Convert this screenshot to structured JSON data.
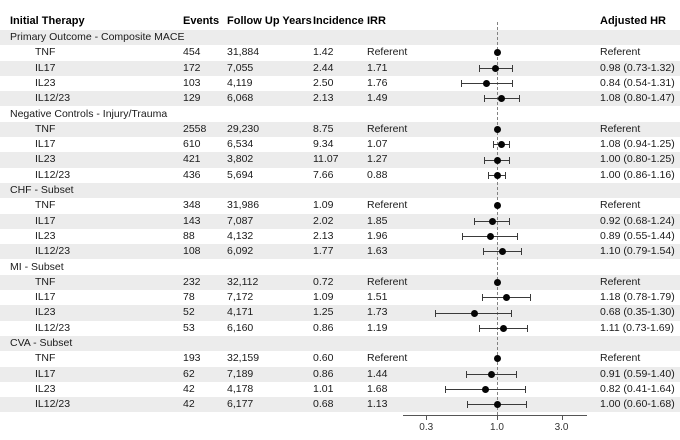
{
  "chart_data": {
    "type": "scatter",
    "variant": "forest-plot-with-table",
    "xscale": "log",
    "x_ticks": [
      0.3,
      1.0,
      3.0
    ],
    "x_tick_labels": [
      "0.3",
      "1.0",
      "3.0"
    ],
    "reference_line": 1.0,
    "stripe_color": "#ececec",
    "point_color": "#050505",
    "columns": {
      "therapy": "Initial Therapy",
      "events": "Events",
      "follow_up": "Follow Up Years",
      "incidence": "Incidence",
      "irr": "IRR",
      "adjusted_hr": "Adjusted HR"
    },
    "sections": [
      {
        "title": "Primary Outcome - Composite MACE",
        "rows": [
          {
            "therapy": "TNF",
            "events": "454",
            "follow_up": "31,884",
            "incidence": "1.42",
            "irr": "Referent",
            "adjusted_hr": "Referent",
            "hr": 1.0,
            "ci": null
          },
          {
            "therapy": "IL17",
            "events": "172",
            "follow_up": "7,055",
            "incidence": "2.44",
            "irr": "1.71",
            "adjusted_hr": "0.98 (0.73-1.32)",
            "hr": 0.98,
            "ci": [
              0.73,
              1.32
            ]
          },
          {
            "therapy": "IL23",
            "events": "103",
            "follow_up": "4,119",
            "incidence": "2.50",
            "irr": "1.76",
            "adjusted_hr": "0.84 (0.54-1.31)",
            "hr": 0.84,
            "ci": [
              0.54,
              1.31
            ]
          },
          {
            "therapy": "IL12/23",
            "events": "129",
            "follow_up": "6,068",
            "incidence": "2.13",
            "irr": "1.49",
            "adjusted_hr": "1.08 (0.80-1.47)",
            "hr": 1.08,
            "ci": [
              0.8,
              1.47
            ]
          }
        ]
      },
      {
        "title": "Negative Controls - Injury/Trauma",
        "rows": [
          {
            "therapy": "TNF",
            "events": "2558",
            "follow_up": "29,230",
            "incidence": "8.75",
            "irr": "Referent",
            "adjusted_hr": "Referent",
            "hr": 1.0,
            "ci": null
          },
          {
            "therapy": "IL17",
            "events": "610",
            "follow_up": "6,534",
            "incidence": "9.34",
            "irr": "1.07",
            "adjusted_hr": "1.08 (0.94-1.25)",
            "hr": 1.08,
            "ci": [
              0.94,
              1.25
            ]
          },
          {
            "therapy": "IL23",
            "events": "421",
            "follow_up": "3,802",
            "incidence": "11.07",
            "irr": "1.27",
            "adjusted_hr": "1.00 (0.80-1.25)",
            "hr": 1.0,
            "ci": [
              0.8,
              1.25
            ]
          },
          {
            "therapy": "IL12/23",
            "events": "436",
            "follow_up": "5,694",
            "incidence": "7.66",
            "irr": "0.88",
            "adjusted_hr": "1.00 (0.86-1.16)",
            "hr": 1.0,
            "ci": [
              0.86,
              1.16
            ]
          }
        ]
      },
      {
        "title": "CHF - Subset",
        "rows": [
          {
            "therapy": "TNF",
            "events": "348",
            "follow_up": "31,986",
            "incidence": "1.09",
            "irr": "Referent",
            "adjusted_hr": "Referent",
            "hr": 1.0,
            "ci": null
          },
          {
            "therapy": "IL17",
            "events": "143",
            "follow_up": "7,087",
            "incidence": "2.02",
            "irr": "1.85",
            "adjusted_hr": "0.92 (0.68-1.24)",
            "hr": 0.92,
            "ci": [
              0.68,
              1.24
            ]
          },
          {
            "therapy": "IL23",
            "events": "88",
            "follow_up": "4,132",
            "incidence": "2.13",
            "irr": "1.96",
            "adjusted_hr": "0.89 (0.55-1.44)",
            "hr": 0.89,
            "ci": [
              0.55,
              1.44
            ]
          },
          {
            "therapy": "IL12/23",
            "events": "108",
            "follow_up": "6,092",
            "incidence": "1.77",
            "irr": "1.63",
            "adjusted_hr": "1.10 (0.79-1.54)",
            "hr": 1.1,
            "ci": [
              0.79,
              1.54
            ]
          }
        ]
      },
      {
        "title": "MI - Subset",
        "rows": [
          {
            "therapy": "TNF",
            "events": "232",
            "follow_up": "32,112",
            "incidence": "0.72",
            "irr": "Referent",
            "adjusted_hr": "Referent",
            "hr": 1.0,
            "ci": null
          },
          {
            "therapy": "IL17",
            "events": "78",
            "follow_up": "7,172",
            "incidence": "1.09",
            "irr": "1.51",
            "adjusted_hr": "1.18 (0.78-1.79)",
            "hr": 1.18,
            "ci": [
              0.78,
              1.79
            ]
          },
          {
            "therapy": "IL23",
            "events": "52",
            "follow_up": "4,171",
            "incidence": "1.25",
            "irr": "1.73",
            "adjusted_hr": "0.68 (0.35-1.30)",
            "hr": 0.68,
            "ci": [
              0.35,
              1.3
            ]
          },
          {
            "therapy": "IL12/23",
            "events": "53",
            "follow_up": "6,160",
            "incidence": "0.86",
            "irr": "1.19",
            "adjusted_hr": "1.11 (0.73-1.69)",
            "hr": 1.11,
            "ci": [
              0.73,
              1.69
            ]
          }
        ]
      },
      {
        "title": "CVA - Subset",
        "rows": [
          {
            "therapy": "TNF",
            "events": "193",
            "follow_up": "32,159",
            "incidence": "0.60",
            "irr": "Referent",
            "adjusted_hr": "Referent",
            "hr": 1.0,
            "ci": null
          },
          {
            "therapy": "IL17",
            "events": "62",
            "follow_up": "7,189",
            "incidence": "0.86",
            "irr": "1.44",
            "adjusted_hr": "0.91 (0.59-1.40)",
            "hr": 0.91,
            "ci": [
              0.59,
              1.4
            ]
          },
          {
            "therapy": "IL23",
            "events": "42",
            "follow_up": "4,178",
            "incidence": "1.01",
            "irr": "1.68",
            "adjusted_hr": "0.82 (0.41-1.64)",
            "hr": 0.82,
            "ci": [
              0.41,
              1.64
            ]
          },
          {
            "therapy": "IL12/23",
            "events": "42",
            "follow_up": "6,177",
            "incidence": "0.68",
            "irr": "1.13",
            "adjusted_hr": "1.00 (0.60-1.68)",
            "hr": 1.0,
            "ci": [
              0.6,
              1.68
            ]
          }
        ]
      }
    ]
  }
}
